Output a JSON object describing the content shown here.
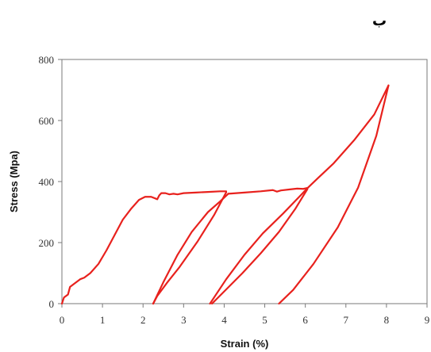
{
  "panel_label": "ب",
  "chart_data": {
    "type": "line",
    "title": "",
    "xlabel": "Strain (%)",
    "ylabel": "Stress (Mpa)",
    "xlim": [
      0,
      9
    ],
    "ylim": [
      0,
      800
    ],
    "xticks": [
      0,
      1,
      2,
      3,
      4,
      5,
      6,
      7,
      8,
      9
    ],
    "yticks": [
      0,
      200,
      400,
      600,
      800
    ],
    "grid": false,
    "color": "#e8211d",
    "series": [
      {
        "x": [
          0,
          0.05,
          0.15,
          0.2,
          0.3,
          0.45,
          0.55,
          0.7,
          0.9,
          1.1,
          1.3,
          1.5,
          1.7,
          1.9,
          2.05,
          2.2,
          2.35,
          2.4,
          2.45,
          2.55,
          2.65,
          2.75,
          2.85,
          3.0,
          3.3,
          3.6,
          3.9,
          4.05
        ],
        "y": [
          0,
          20,
          30,
          55,
          65,
          80,
          85,
          100,
          130,
          175,
          225,
          275,
          310,
          340,
          350,
          350,
          342,
          355,
          362,
          362,
          358,
          360,
          358,
          362,
          364,
          366,
          368,
          368
        ]
      },
      {
        "x": [
          4.05,
          3.75,
          3.35,
          2.9,
          2.6,
          2.35,
          2.25
        ],
        "y": [
          365,
          290,
          205,
          120,
          70,
          25,
          0
        ]
      },
      {
        "x": [
          2.25,
          2.5,
          2.85,
          3.2,
          3.6,
          3.9,
          4.1
        ],
        "y": [
          0,
          70,
          160,
          235,
          300,
          335,
          360
        ]
      },
      {
        "x": [
          4.1,
          4.5,
          4.9,
          5.2,
          5.3,
          5.4,
          5.6,
          5.8,
          5.95,
          6.05
        ],
        "y": [
          360,
          364,
          368,
          372,
          367,
          371,
          374,
          377,
          376,
          379
        ]
      },
      {
        "x": [
          6.05,
          5.75,
          5.35,
          4.9,
          4.45,
          4.0,
          3.7
        ],
        "y": [
          375,
          310,
          235,
          165,
          100,
          40,
          0
        ]
      },
      {
        "x": [
          3.65,
          4.05,
          4.5,
          4.95,
          5.45,
          5.85,
          6.05
        ],
        "y": [
          0,
          80,
          160,
          230,
          295,
          350,
          378
        ]
      },
      {
        "x": [
          6.05,
          6.3,
          6.7,
          7.2,
          7.7,
          8.05
        ],
        "y": [
          378,
          410,
          460,
          535,
          620,
          715
        ]
      },
      {
        "x": [
          8.05,
          7.75,
          7.3,
          6.8,
          6.2,
          5.7,
          5.35
        ],
        "y": [
          715,
          550,
          380,
          250,
          130,
          45,
          0
        ]
      }
    ]
  }
}
